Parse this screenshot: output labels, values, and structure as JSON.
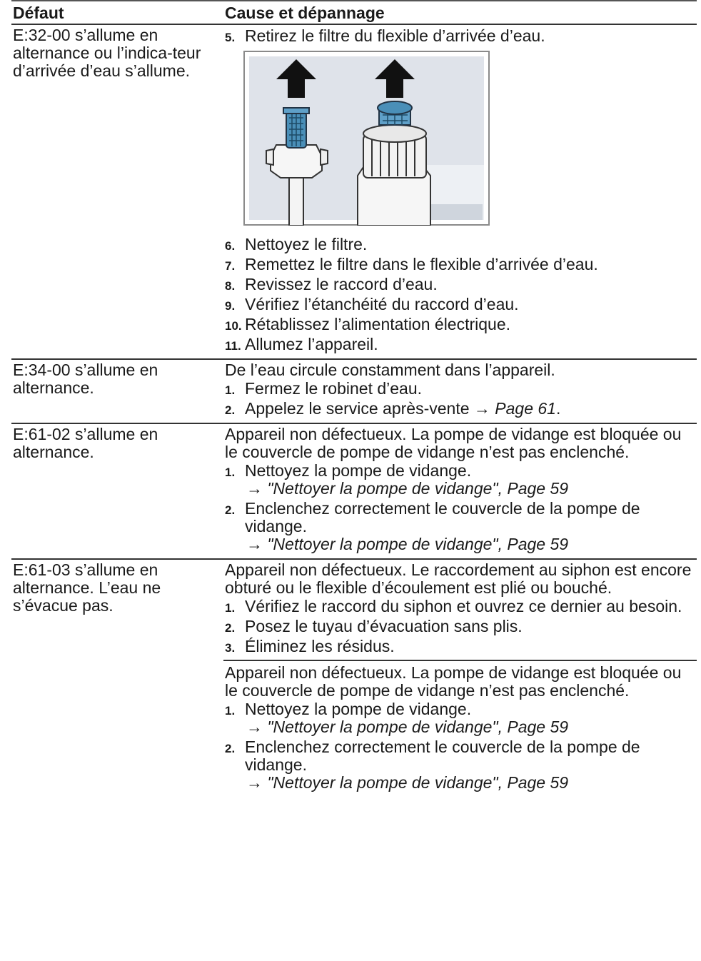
{
  "table": {
    "header": [
      "Défaut",
      "Cause et dépannage"
    ],
    "rows": [
      {
        "fault": "E:32-00 s’allume en alternance ou l’indica-teur d’arrivée d’eau s’allume.",
        "causes": [
          {
            "steps": [
              {
                "number": "5.",
                "text": "Retirez le filtre du flexible d’arrivée d’eau."
              },
              {
                "number": "6.",
                "text": "Nettoyez le filtre."
              },
              {
                "number": "7.",
                "text": "Remettez le filtre dans le flexible d’arrivée d’eau."
              },
              {
                "number": "8.",
                "text": "Revissez le raccord d’eau."
              },
              {
                "number": "9.",
                "text": "Vérifiez l’étanchéité du raccord d’eau."
              },
              {
                "number": "10.",
                "text": "Rétablissez l’alimentation électrique."
              },
              {
                "number": "11.",
                "text": "Allumez l’appareil."
              }
            ]
          }
        ]
      },
      {
        "fault": "E:34-00 s’allume en alternance.",
        "causes": [
          {
            "intro": "De l’eau circule constamment dans l’appareil.",
            "steps": [
              {
                "number": "1.",
                "text": "Fermez le robinet d’eau."
              },
              {
                "number": "2.",
                "text": "Appelez le service après-vente",
                "ref": {
                  "arrow": "→",
                  "text": "Page 61"
                },
                "after": "."
              }
            ]
          }
        ]
      },
      {
        "fault": "E:61-02 s’allume en alternance.",
        "causes": [
          {
            "intro": "Appareil non défectueux. La pompe de vidange est bloquée ou le couvercle de pompe de vidange n’est pas enclenché.",
            "steps": [
              {
                "number": "1.",
                "text": "Nettoyez la pompe de vidange.",
                "ref": {
                  "arrow": "→",
                  "text": "\"Nettoyer la pompe de vidange\", Page 59"
                }
              },
              {
                "number": "2.",
                "text": "Enclenchez correctement le couvercle de la pompe de vidange.",
                "ref": {
                  "arrow": "→",
                  "text": "\"Nettoyer la pompe de vidange\", Page 59"
                }
              }
            ]
          }
        ]
      },
      {
        "fault": "E:61-03 s’allume en alternance. L’eau ne s’évacue pas.",
        "causes": [
          {
            "intro": "Appareil non défectueux. Le raccordement au siphon est encore obturé ou le flexible d’écoulement est plié ou bouché.",
            "steps": [
              {
                "number": "1.",
                "text": "Vérifiez le raccord du siphon et ouvrez ce dernier au besoin."
              },
              {
                "number": "2.",
                "text": "Posez le tuyau d’évacuation sans plis."
              },
              {
                "number": "3.",
                "text": "Éliminez les résidus."
              }
            ]
          },
          {
            "intro": "Appareil non défectueux. La pompe de vidange est bloquée ou le couvercle de pompe de vidange n’est pas enclenché.",
            "steps": [
              {
                "number": "1.",
                "text": "Nettoyez la pompe de vidange.",
                "ref": {
                  "arrow": "→",
                  "text": "\"Nettoyer la pompe de vidange\", Page 59"
                }
              },
              {
                "number": "2.",
                "text": "Enclenchez correctement le couvercle de la pompe de vidange.",
                "ref": {
                  "arrow": "→",
                  "text": "\"Nettoyer la pompe de vidange\", Page 59"
                }
              }
            ]
          }
        ]
      }
    ]
  }
}
